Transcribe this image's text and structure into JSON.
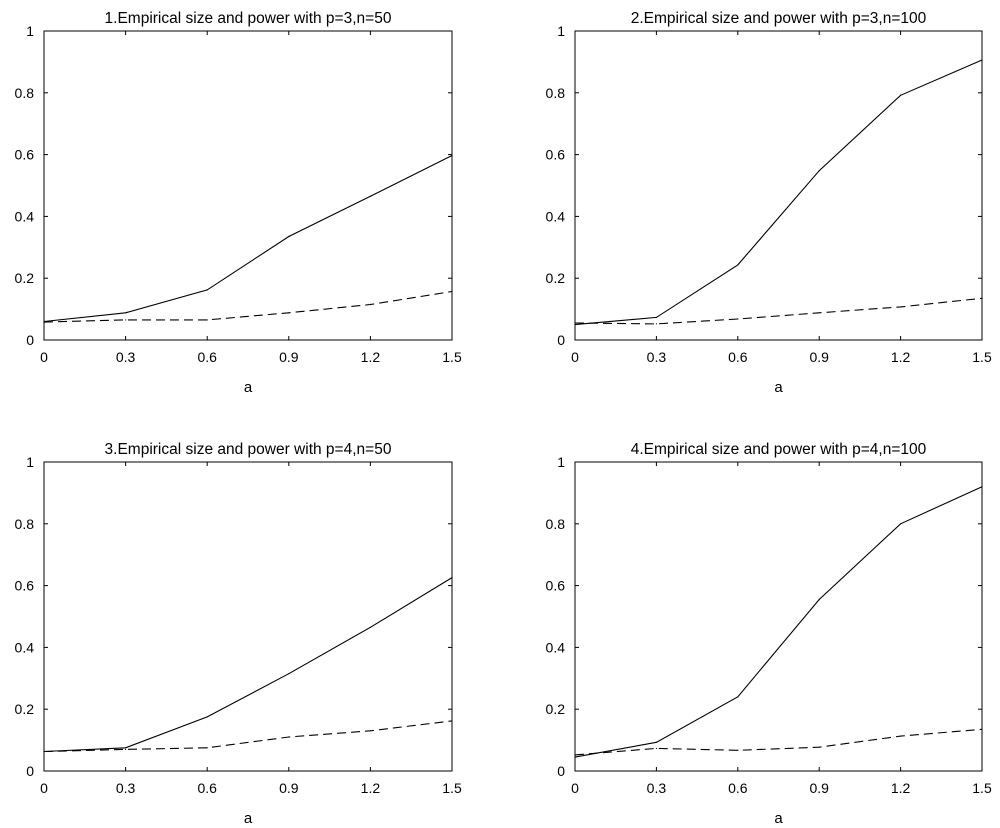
{
  "chart_data": [
    {
      "type": "line",
      "title": "1.Empirical size and power with p=3,n=50",
      "xlabel": "a",
      "ylabel": "",
      "x": [
        0,
        0.3,
        0.6,
        0.9,
        1.2,
        1.5
      ],
      "xticks": [
        "0",
        "0.3",
        "0.6",
        "0.9",
        "1.2",
        "1.5"
      ],
      "yticks": [
        "0",
        "0.2",
        "0.4",
        "0.6",
        "0.8",
        "1"
      ],
      "xlim": [
        0,
        1.5
      ],
      "ylim": [
        0,
        1
      ],
      "grid": false,
      "series": [
        {
          "style": "solid",
          "color": "#000000",
          "values": [
            0.06,
            0.088,
            0.162,
            0.335,
            0.465,
            0.597
          ]
        },
        {
          "style": "dashed",
          "color": "#000000",
          "values": [
            0.058,
            0.065,
            0.065,
            0.088,
            0.115,
            0.157
          ]
        }
      ]
    },
    {
      "type": "line",
      "title": "2.Empirical size and power with p=3,n=100",
      "xlabel": "a",
      "ylabel": "",
      "x": [
        0,
        0.3,
        0.6,
        0.9,
        1.2,
        1.5
      ],
      "xticks": [
        "0",
        "0.3",
        "0.6",
        "0.9",
        "1.2",
        "1.5"
      ],
      "yticks": [
        "0",
        "0.2",
        "0.4",
        "0.6",
        "0.8",
        "1"
      ],
      "xlim": [
        0,
        1.5
      ],
      "ylim": [
        0,
        1
      ],
      "grid": false,
      "series": [
        {
          "style": "solid",
          "color": "#000000",
          "values": [
            0.05,
            0.073,
            0.243,
            0.548,
            0.792,
            0.906
          ]
        },
        {
          "style": "dashed",
          "color": "#000000",
          "values": [
            0.055,
            0.052,
            0.068,
            0.088,
            0.107,
            0.135
          ]
        }
      ]
    },
    {
      "type": "line",
      "title": "3.Empirical size and power with p=4,n=50",
      "xlabel": "a",
      "ylabel": "",
      "x": [
        0,
        0.3,
        0.6,
        0.9,
        1.2,
        1.5
      ],
      "xticks": [
        "0",
        "0.3",
        "0.6",
        "0.9",
        "1.2",
        "1.5"
      ],
      "yticks": [
        "0",
        "0.2",
        "0.4",
        "0.6",
        "0.8",
        "1"
      ],
      "xlim": [
        0,
        1.5
      ],
      "ylim": [
        0,
        1
      ],
      "grid": false,
      "series": [
        {
          "style": "solid",
          "color": "#000000",
          "values": [
            0.063,
            0.075,
            0.175,
            0.315,
            0.465,
            0.626
          ]
        },
        {
          "style": "dashed",
          "color": "#000000",
          "values": [
            0.063,
            0.07,
            0.075,
            0.11,
            0.13,
            0.162
          ]
        }
      ]
    },
    {
      "type": "line",
      "title": "4.Empirical size and power with p=4,n=100",
      "xlabel": "a",
      "ylabel": "",
      "x": [
        0,
        0.3,
        0.6,
        0.9,
        1.2,
        1.5
      ],
      "xticks": [
        "0",
        "0.3",
        "0.6",
        "0.9",
        "1.2",
        "1.5"
      ],
      "yticks": [
        "0",
        "0.2",
        "0.4",
        "0.6",
        "0.8",
        "1"
      ],
      "xlim": [
        0,
        1.5
      ],
      "ylim": [
        0,
        1
      ],
      "grid": false,
      "series": [
        {
          "style": "solid",
          "color": "#000000",
          "values": [
            0.045,
            0.093,
            0.24,
            0.555,
            0.8,
            0.92
          ]
        },
        {
          "style": "dashed",
          "color": "#000000",
          "values": [
            0.052,
            0.073,
            0.067,
            0.077,
            0.113,
            0.135
          ]
        }
      ]
    }
  ]
}
